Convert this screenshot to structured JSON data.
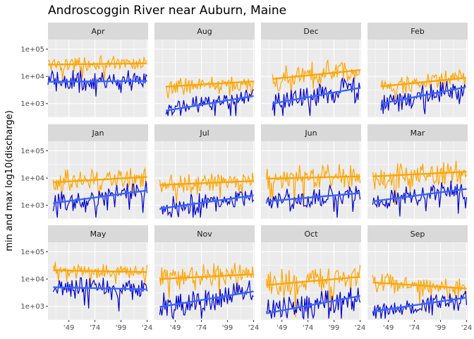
{
  "chart_data": {
    "type": "line",
    "title": "Androscoggin River near Auburn, Maine",
    "xlabel": "",
    "ylabel": "min and max log10(discharge)",
    "x_range": [
      1929,
      2025
    ],
    "x_tick_values": [
      1949,
      1974,
      1999,
      2024
    ],
    "x_tick_labels": [
      "'49",
      "'74",
      "'99",
      "'24"
    ],
    "ylim_log10": [
      2.5,
      5.35
    ],
    "y_scale": "log10",
    "y_tick_values": [
      1000,
      10000,
      100000
    ],
    "y_tick_labels": [
      "1e+03",
      "1e+04",
      "1e+05"
    ],
    "grid": true,
    "legend": "none",
    "colors": {
      "max_series": "#FFA500",
      "min_series": "#0000CD",
      "max_trend": "#FFA500",
      "min_trend": "#3366FF",
      "panel_background": "#EBEBEB",
      "grid": "#FFFFFF",
      "strip_background": "#D9D9D9"
    },
    "panels": [
      {
        "label": "Apr",
        "max_range": [
          1929,
          2024
        ],
        "min_range": [
          1929,
          2024
        ],
        "max_mean": 30000,
        "max_spread": 0.42,
        "min_mean": 7000,
        "min_spread": 0.6,
        "max_fit": [
          27000,
          30000
        ],
        "min_fit": [
          6300,
          6800
        ]
      },
      {
        "label": "Aug",
        "max_range": [
          1940,
          2024
        ],
        "min_range": [
          1940,
          2024
        ],
        "max_mean": 5200,
        "max_spread": 0.45,
        "min_mean": 1100,
        "min_spread": 0.55,
        "max_fit": [
          4200,
          6500
        ],
        "min_fit": [
          550,
          1900
        ]
      },
      {
        "label": "Dec",
        "max_range": [
          1940,
          2024
        ],
        "min_range": [
          1940,
          2024
        ],
        "max_mean": 11000,
        "max_spread": 0.7,
        "min_mean": 2000,
        "min_spread": 0.75,
        "max_fit": [
          8000,
          17000
        ],
        "min_fit": [
          1000,
          3800
        ]
      },
      {
        "label": "Feb",
        "max_range": [
          1942,
          2023
        ],
        "min_range": [
          1942,
          2023
        ],
        "max_mean": 6000,
        "max_spread": 0.5,
        "min_mean": 2200,
        "min_spread": 0.6,
        "max_fit": [
          4300,
          8800
        ],
        "min_fit": [
          1000,
          4000
        ]
      },
      {
        "label": "Jan",
        "max_range": [
          1934,
          2024
        ],
        "min_range": [
          1934,
          2024
        ],
        "max_mean": 8500,
        "max_spread": 0.7,
        "min_mean": 1800,
        "min_spread": 0.6,
        "max_fit": [
          7000,
          11000
        ],
        "min_fit": [
          1200,
          3500
        ]
      },
      {
        "label": "Jul",
        "max_range": [
          1934,
          2024
        ],
        "min_range": [
          1934,
          2024
        ],
        "max_mean": 6500,
        "max_spread": 0.55,
        "min_mean": 1300,
        "min_spread": 0.6,
        "max_fit": [
          5600,
          7800
        ],
        "min_fit": [
          750,
          2300
        ]
      },
      {
        "label": "Jun",
        "max_range": [
          1934,
          2024
        ],
        "min_range": [
          1934,
          2024
        ],
        "max_mean": 10500,
        "max_spread": 0.65,
        "min_mean": 2000,
        "min_spread": 0.6,
        "max_fit": [
          9500,
          11500
        ],
        "min_fit": [
          1400,
          2800
        ]
      },
      {
        "label": "Mar",
        "max_range": [
          1934,
          2024
        ],
        "min_range": [
          1934,
          2024
        ],
        "max_mean": 14000,
        "max_spread": 0.7,
        "min_mean": 2400,
        "min_spread": 0.6,
        "max_fit": [
          11500,
          17000
        ],
        "min_fit": [
          1400,
          4000
        ]
      },
      {
        "label": "May",
        "max_range": [
          1934,
          2024
        ],
        "min_range": [
          1934,
          2024
        ],
        "max_mean": 20000,
        "max_spread": 0.45,
        "min_mean": 4500,
        "min_spread": 0.6,
        "max_fit": [
          21000,
          18000
        ],
        "min_fit": [
          5000,
          4200
        ]
      },
      {
        "label": "Nov",
        "max_range": [
          1934,
          2024
        ],
        "min_range": [
          1934,
          2024
        ],
        "max_mean": 12000,
        "max_spread": 0.7,
        "min_mean": 1900,
        "min_spread": 0.8,
        "max_fit": [
          10000,
          15000
        ],
        "min_fit": [
          950,
          3500
        ]
      },
      {
        "label": "Oct",
        "max_range": [
          1934,
          2024
        ],
        "min_range": [
          1934,
          2024
        ],
        "max_mean": 9000,
        "max_spread": 0.8,
        "min_mean": 1200,
        "min_spread": 0.7,
        "max_fit": [
          6000,
          12000
        ],
        "min_fit": [
          550,
          2400
        ]
      },
      {
        "label": "Sep",
        "max_range": [
          1934,
          2024
        ],
        "min_range": [
          1934,
          2024
        ],
        "max_mean": 5500,
        "max_spread": 0.55,
        "min_mean": 1000,
        "min_spread": 0.6,
        "max_fit": [
          7500,
          4500
        ],
        "min_fit": [
          650,
          2100
        ]
      }
    ]
  }
}
